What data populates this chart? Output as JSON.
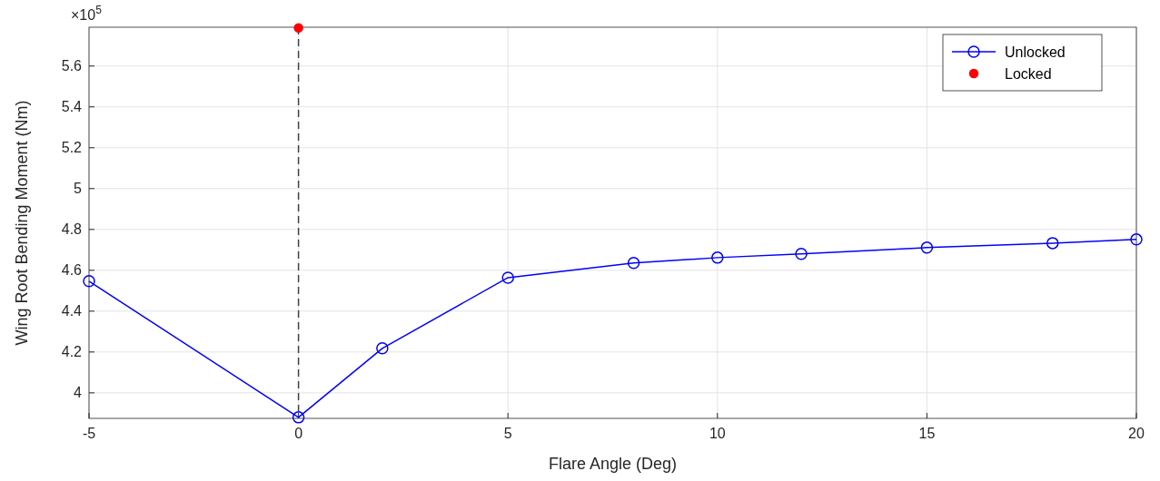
{
  "chart_data": {
    "type": "line",
    "xlabel": "Flare Angle (Deg)",
    "ylabel": "Wing Root Bending Moment (Nm)",
    "annotations": [
      "×10$^{5}$"
    ],
    "xlim": [
      -5,
      20
    ],
    "xticks": [
      -5,
      0,
      5,
      10,
      15,
      20
    ],
    "ylim": [
      3.875,
      5.79
    ],
    "yticks": [
      4,
      4.2,
      4.4,
      4.6,
      4.8,
      5,
      5.2,
      5.4,
      5.6
    ],
    "grid": true,
    "legend": "top right",
    "ref_lines": [
      {
        "axis": "x",
        "value": 0,
        "color": "#404040",
        "line_style": "dashed"
      }
    ],
    "series": [
      {
        "name": "Unlocked",
        "color": "#0000ff",
        "marker": "circle",
        "x": [
          -5,
          0,
          2,
          5,
          8,
          10,
          12,
          15,
          18,
          20
        ],
        "values": [
          4.547,
          3.88,
          4.218,
          4.564,
          4.636,
          4.662,
          4.68,
          4.711,
          4.733,
          4.751
        ]
      },
      {
        "name": "Locked",
        "type": "scatter",
        "color": "#ff0000",
        "marker": "circle",
        "x": [
          0
        ],
        "values": [
          5.787
        ]
      }
    ]
  }
}
